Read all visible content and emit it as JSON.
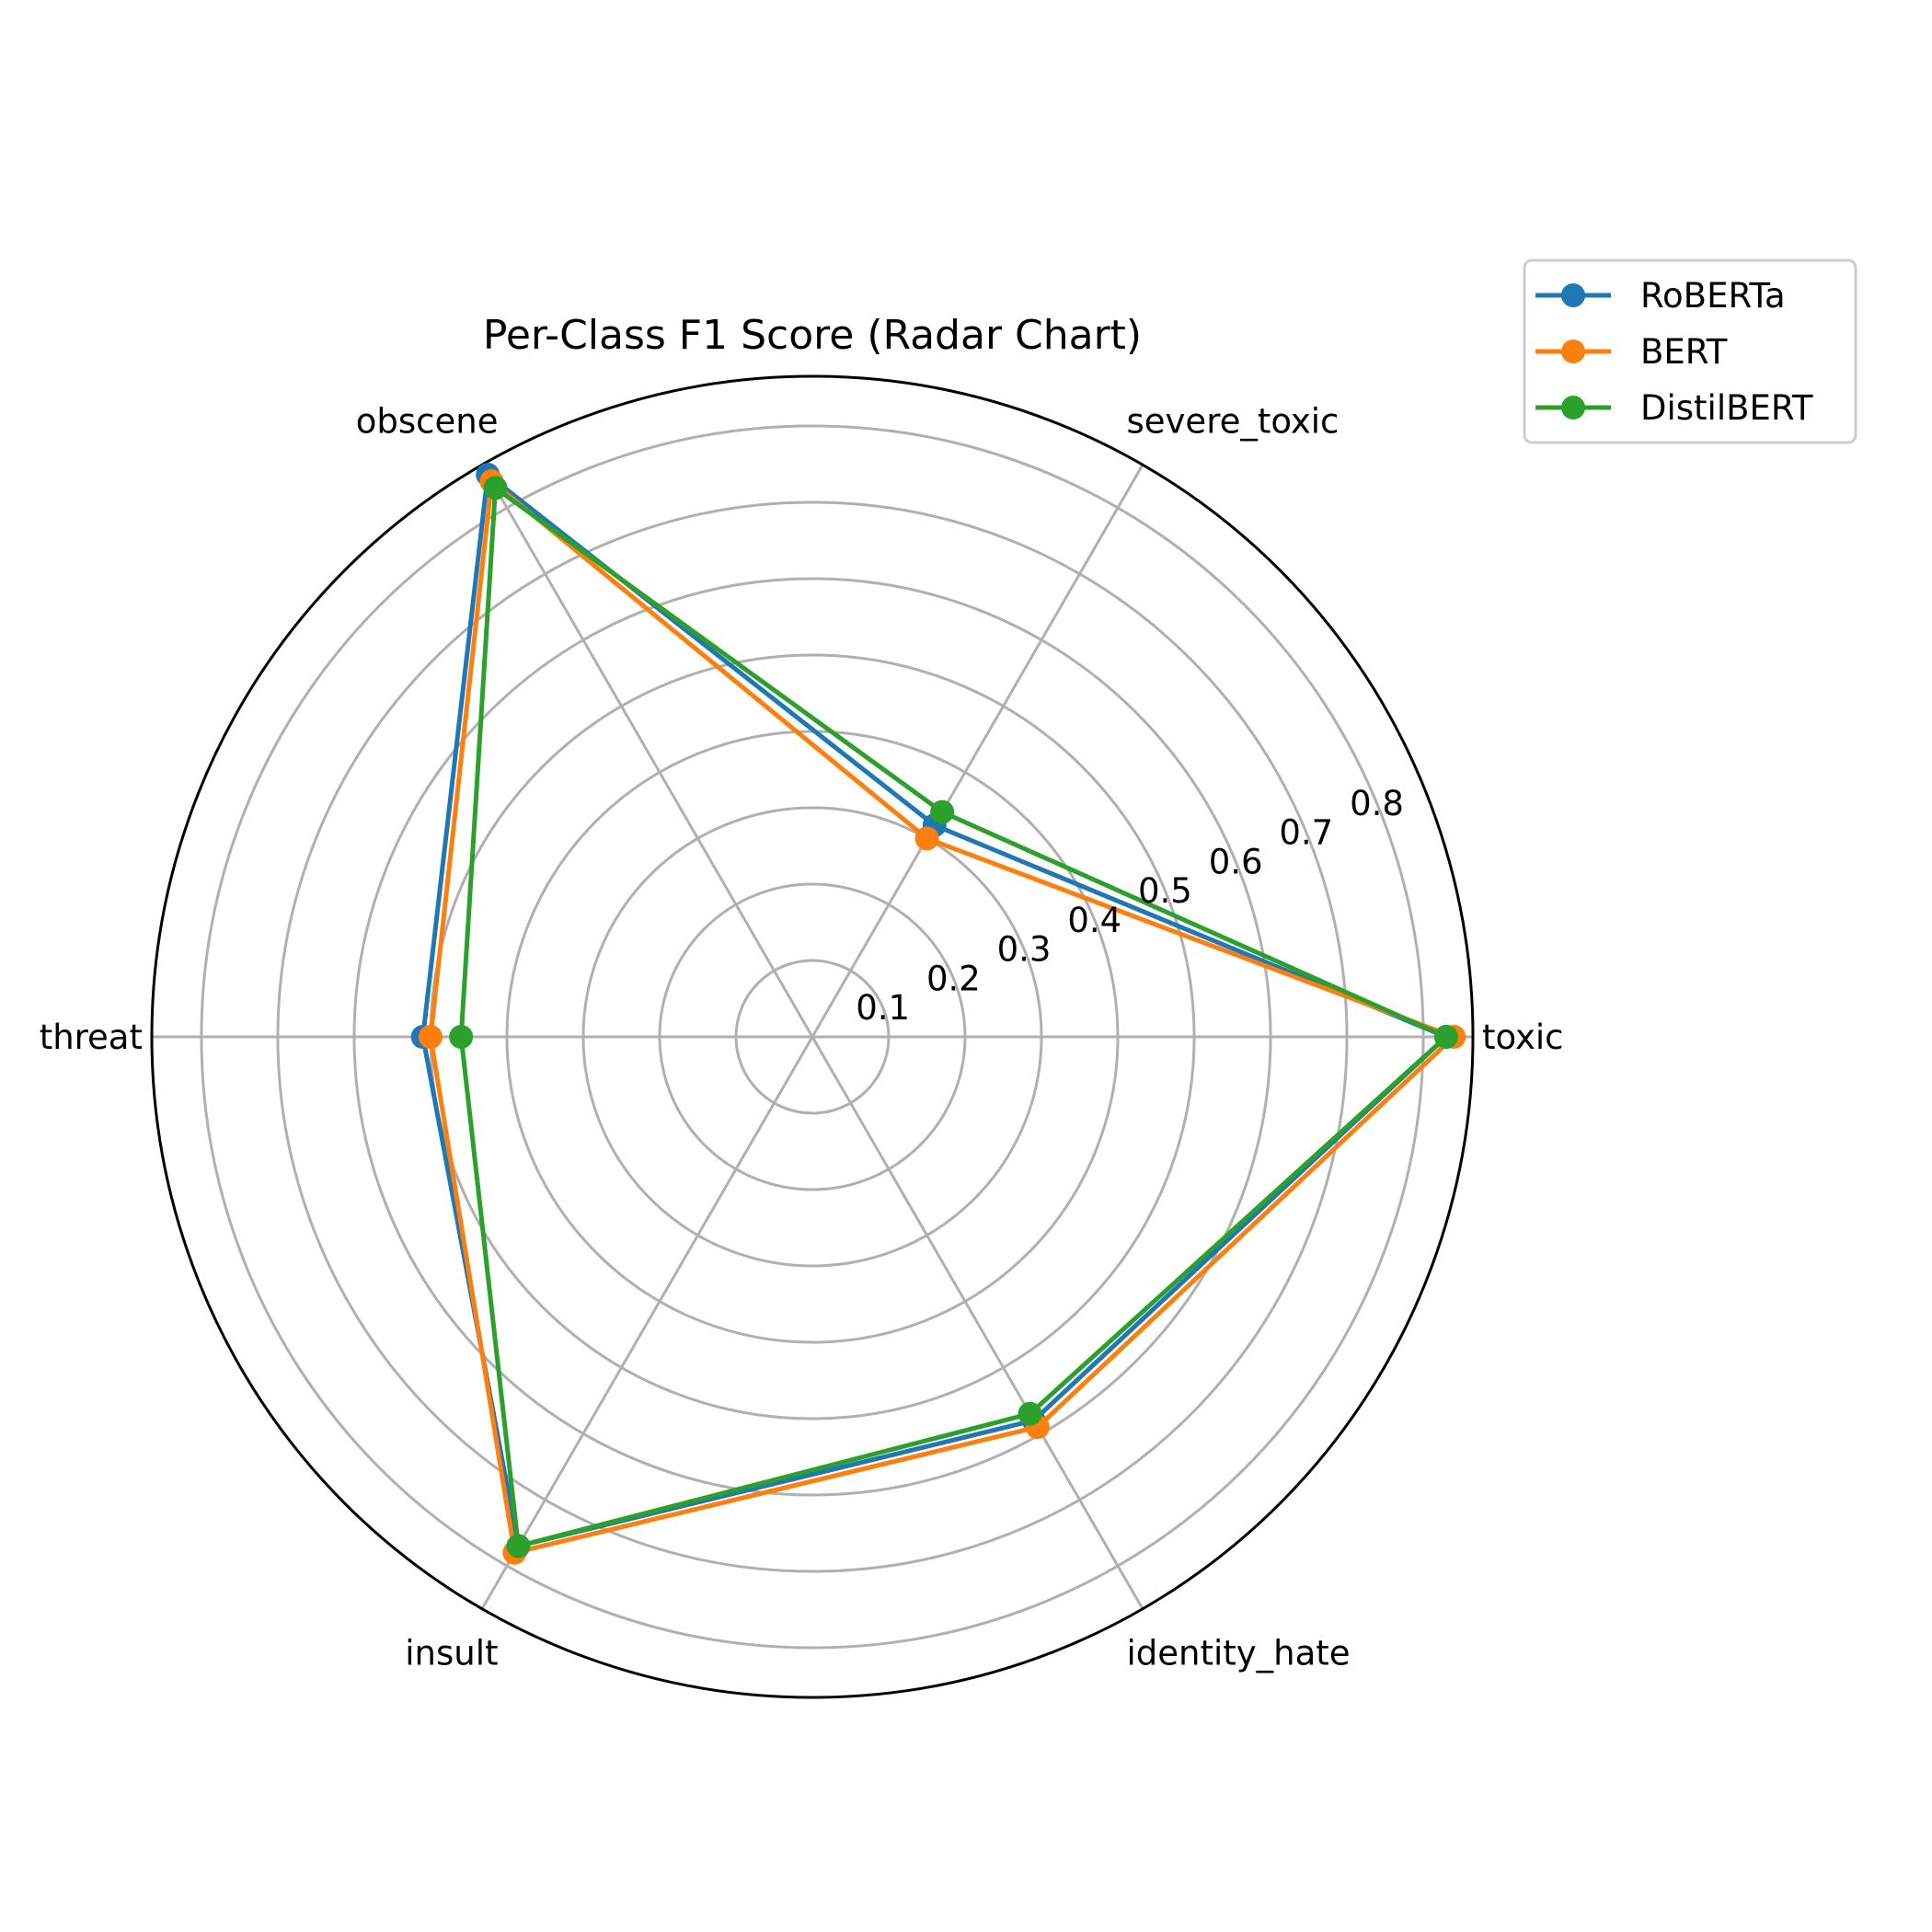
{
  "chart_data": {
    "type": "radar",
    "title": "Per-Class F1 Score (Radar Chart)",
    "categories": [
      "toxic",
      "severe_toxic",
      "obscene",
      "threat",
      "insult",
      "identity_hate"
    ],
    "r_ticks": [
      "0.1",
      "0.2",
      "0.3",
      "0.4",
      "0.5",
      "0.6",
      "0.7",
      "0.8"
    ],
    "r_max": 0.865,
    "grid": true,
    "legend_position": "top-right (outside)",
    "series": [
      {
        "name": "RoBERTa",
        "color": "#1f77b4",
        "values": [
          0.83,
          0.32,
          0.85,
          0.51,
          0.77,
          0.58
        ]
      },
      {
        "name": "BERT",
        "color": "#ff7f0e",
        "values": [
          0.84,
          0.3,
          0.84,
          0.5,
          0.78,
          0.59
        ]
      },
      {
        "name": "DistilBERT",
        "color": "#2ca02c",
        "values": [
          0.83,
          0.34,
          0.83,
          0.46,
          0.77,
          0.57
        ]
      }
    ]
  }
}
